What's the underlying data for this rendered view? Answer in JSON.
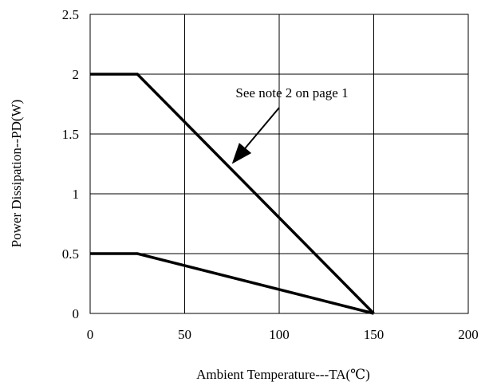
{
  "chart_data": {
    "type": "line",
    "title": "",
    "xlabel": "Ambient Temperature---TA(℃)",
    "ylabel": "Power Dissipation--PD(W)",
    "xlim": [
      0,
      200
    ],
    "ylim": [
      0,
      2.5
    ],
    "x_ticks": [
      0,
      50,
      100,
      150,
      200
    ],
    "y_ticks": [
      0,
      0.5,
      1,
      1.5,
      2,
      2.5
    ],
    "x_tick_labels": [
      "0",
      "50",
      "100",
      "150",
      "200"
    ],
    "y_tick_labels": [
      "0",
      "0.5",
      "1",
      "1.5",
      "2",
      "2.5"
    ],
    "grid": true,
    "series": [
      {
        "points": [
          [
            0,
            2
          ],
          [
            25,
            2
          ],
          [
            150,
            0
          ]
        ]
      },
      {
        "points": [
          [
            0,
            0.5
          ],
          [
            25,
            0.5
          ],
          [
            150,
            0
          ]
        ]
      }
    ],
    "annotations": [
      {
        "text": "See note 2 on page 1",
        "arrow_to": [
          75,
          1.25
        ]
      }
    ],
    "colors": {
      "line": "#000000",
      "grid": "#000000",
      "axis": "#000000"
    }
  }
}
